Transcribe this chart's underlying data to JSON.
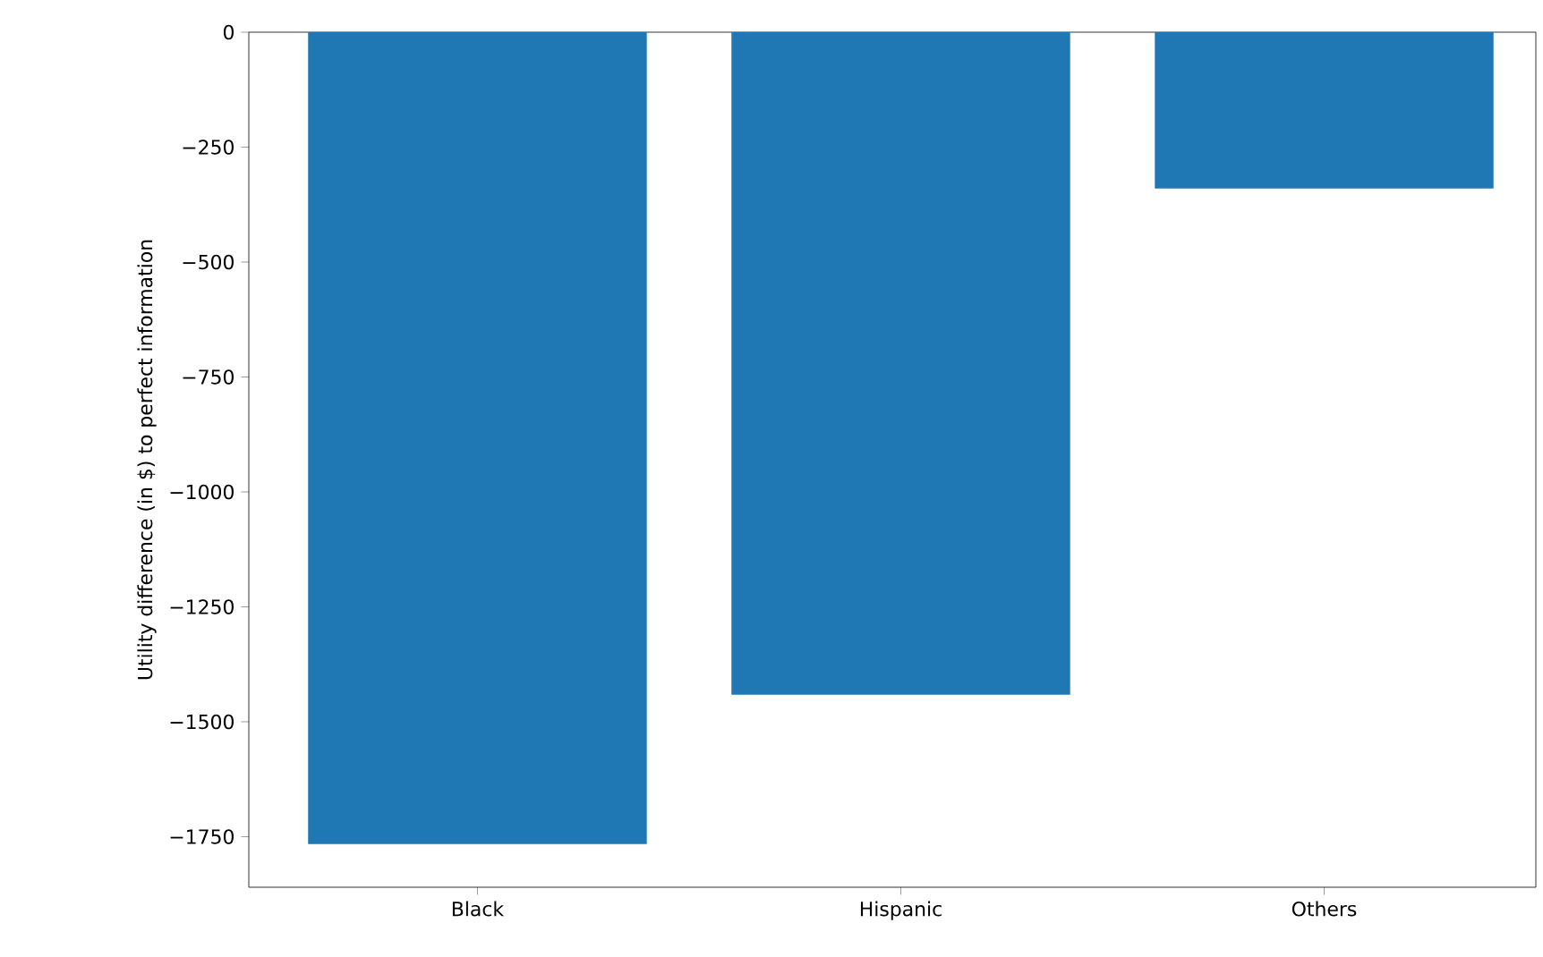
{
  "chart_data": {
    "type": "bar",
    "ylabel": "Utility difference (in $) to perfect information",
    "categories": [
      "Black",
      "Hispanic",
      "Others"
    ],
    "values": [
      -1766,
      -1441,
      -340
    ],
    "color": "#1f77b4",
    "ylim": [
      -1860,
      0
    ],
    "yticks": [
      {
        "value": 0,
        "label": "0"
      },
      {
        "value": -250,
        "label": "−250"
      },
      {
        "value": -500,
        "label": "−500"
      },
      {
        "value": -750,
        "label": "−750"
      },
      {
        "value": -1000,
        "label": "−1000"
      },
      {
        "value": -1250,
        "label": "−1250"
      },
      {
        "value": -1500,
        "label": "−1500"
      },
      {
        "value": -1750,
        "label": "−1750"
      }
    ]
  }
}
